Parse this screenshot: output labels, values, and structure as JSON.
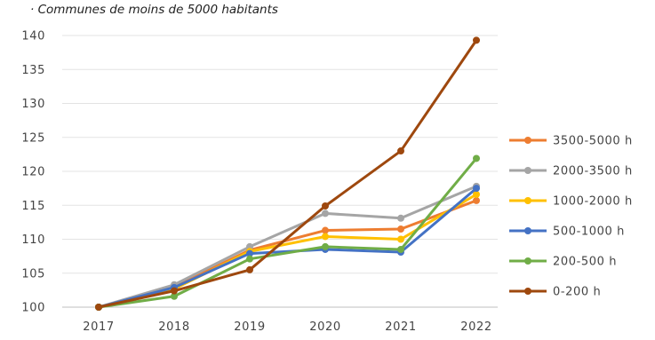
{
  "chart_data": {
    "type": "line",
    "title": "· Communes de moins de 5000 habitants",
    "xlabel": "",
    "ylabel": "",
    "categories": [
      "2017",
      "2018",
      "2019",
      "2020",
      "2021",
      "2022"
    ],
    "yticks": [
      100,
      105,
      110,
      115,
      120,
      125,
      130,
      135,
      140
    ],
    "ylim": [
      100,
      140
    ],
    "grid": "horizontal",
    "legend_position": "right",
    "series": [
      {
        "name": "3500-5000 h",
        "color": "#ed7d31",
        "values": [
          100,
          103.0,
          108.4,
          111.3,
          111.5,
          115.7
        ]
      },
      {
        "name": "2000-3500 h",
        "color": "#a5a5a5",
        "values": [
          100,
          103.3,
          108.9,
          113.8,
          113.1,
          117.8
        ]
      },
      {
        "name": "1000-2000 h",
        "color": "#ffc000",
        "values": [
          100,
          102.7,
          108.2,
          110.4,
          110.0,
          116.6
        ]
      },
      {
        "name": "500-1000 h",
        "color": "#4472c4",
        "values": [
          100,
          102.9,
          107.9,
          108.5,
          108.1,
          117.5
        ]
      },
      {
        "name": "200-500 h",
        "color": "#70ad47",
        "values": [
          100,
          101.6,
          107.1,
          108.9,
          108.5,
          121.9
        ]
      },
      {
        "name": "0-200 h",
        "color": "#9e480e",
        "values": [
          100,
          102.4,
          105.5,
          114.9,
          123.0,
          139.3
        ]
      }
    ]
  }
}
